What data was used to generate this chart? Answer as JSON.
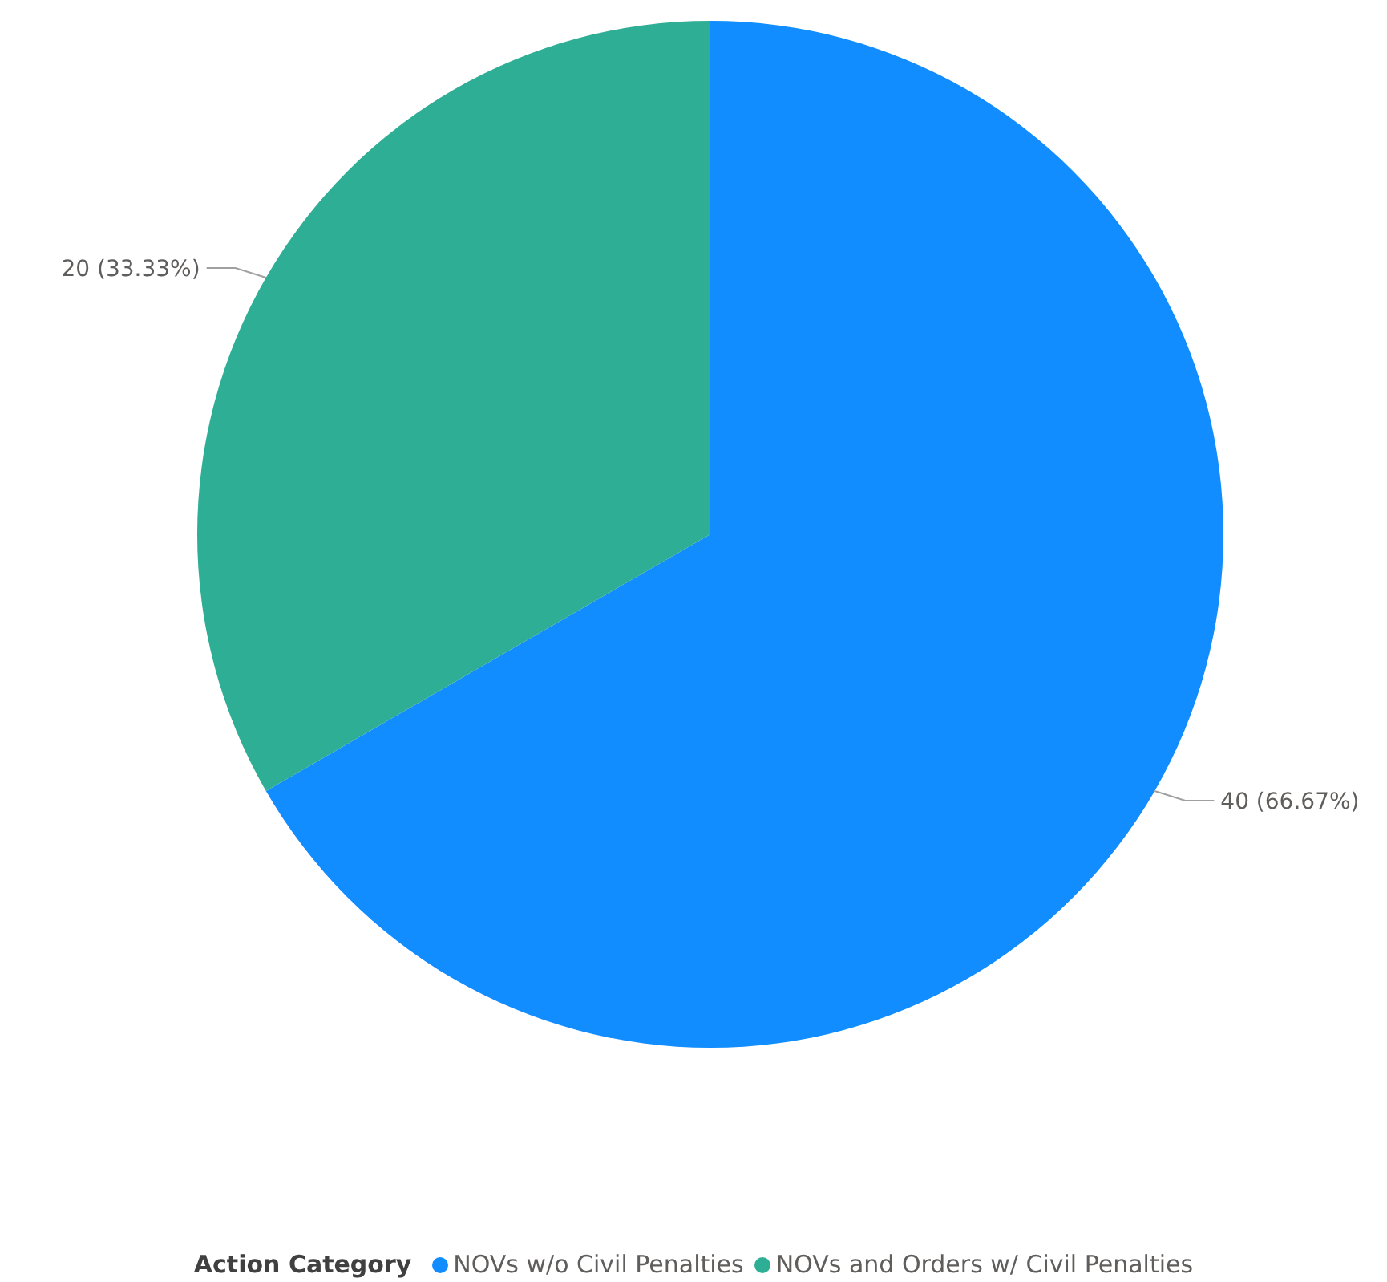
{
  "chart_data": {
    "type": "pie",
    "legend_title": "Action Category",
    "legend": "bottom",
    "categories": [
      "NOVs w/o Civil Penalties",
      "NOVs and Orders w/ Civil Penalties"
    ],
    "values": [
      40,
      20
    ],
    "colors": [
      "#118dff",
      "#2eae94"
    ],
    "value_labels": [
      "40 (66.67%)",
      "20 (33.33%)"
    ]
  }
}
